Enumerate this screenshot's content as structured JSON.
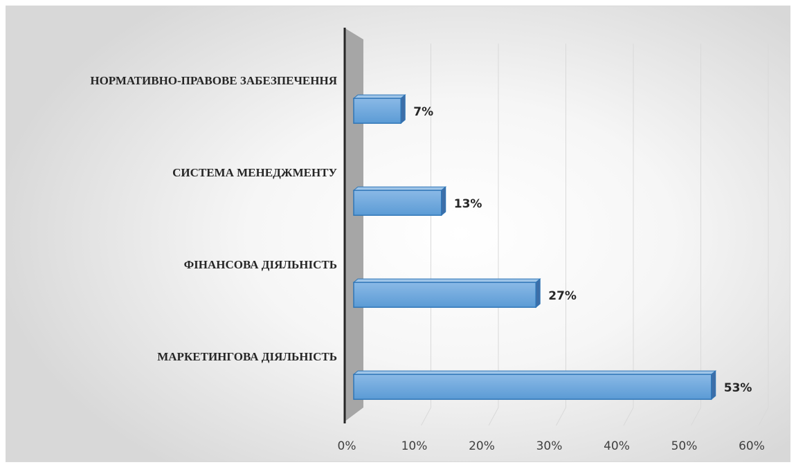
{
  "chart_data": {
    "type": "bar",
    "orientation": "horizontal",
    "style": "3d",
    "categories": [
      "НОРМАТИВНО-ПРАВОВЕ ЗАБЕЗПЕЧЕННЯ",
      "СИСТЕМА МЕНЕДЖМЕНТУ",
      "ФІНАНСОВА ДІЯЛЬНІСТЬ",
      "МАРКЕТИНГОВА ДІЯЛЬНІСТЬ"
    ],
    "values": [
      7,
      13,
      27,
      53
    ],
    "data_labels": [
      "7%",
      "13%",
      "27%",
      "53%"
    ],
    "xlim": [
      0,
      60
    ],
    "x_ticks": [
      "0%",
      "10%",
      "20%",
      "30%",
      "40%",
      "50%",
      "60%"
    ],
    "gridlines": true,
    "legend": "none",
    "colors": {
      "bar_face": "#6fa8dc",
      "bar_top": "#9fc5e8",
      "bar_side": "#3d6ea8",
      "bar_border": "#2e75b6",
      "wall": "#a6a6a6",
      "grid": "#d9d9d9"
    }
  }
}
